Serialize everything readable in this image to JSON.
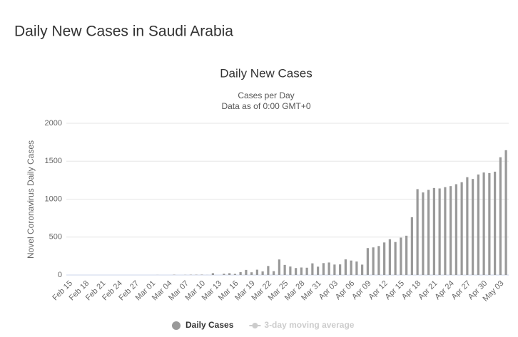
{
  "page_title": "Daily New Cases in Saudi Arabia",
  "chart_data": {
    "type": "bar",
    "title": "Daily New Cases",
    "subtitle": [
      "Cases per Day",
      "Data as of 0:00 GMT+0"
    ],
    "y_label": "Novel Coronavirus Daily Cases",
    "categories": [
      "Feb 15",
      null,
      null,
      "Feb 18",
      null,
      null,
      "Feb 21",
      null,
      null,
      "Feb 24",
      null,
      null,
      "Feb 27",
      null,
      null,
      "Mar 01",
      null,
      null,
      "Mar 04",
      null,
      null,
      "Mar 07",
      null,
      null,
      "Mar 10",
      null,
      null,
      "Mar 13",
      null,
      null,
      "Mar 16",
      null,
      null,
      "Mar 19",
      null,
      null,
      "Mar 22",
      null,
      null,
      "Mar 25",
      null,
      null,
      "Mar 28",
      null,
      null,
      "Mar 31",
      null,
      null,
      "Apr 03",
      null,
      null,
      "Apr 06",
      null,
      null,
      "Apr 09",
      null,
      null,
      "Apr 12",
      null,
      null,
      "Apr 15",
      null,
      null,
      "Apr 18",
      null,
      null,
      "Apr 21",
      null,
      null,
      "Apr 24",
      null,
      null,
      "Apr 27",
      null,
      null,
      "Apr 30",
      null,
      null,
      "May 03",
      null
    ],
    "series": [
      {
        "name": "Daily Cases",
        "color": "#999999",
        "values": [
          0,
          0,
          0,
          0,
          0,
          0,
          0,
          0,
          0,
          0,
          0,
          0,
          0,
          0,
          0,
          0,
          1,
          0,
          0,
          4,
          0,
          2,
          4,
          4,
          5,
          1,
          24,
          0,
          17,
          24,
          15,
          38,
          67,
          36,
          70,
          48,
          119,
          51,
          205,
          133,
          112,
          92,
          99,
          96,
          154,
          110,
          157,
          165,
          138,
          140,
          206,
          191,
          178,
          137,
          355,
          364,
          382,
          429,
          472,
          435,
          493,
          518,
          762,
          1132,
          1088,
          1122,
          1147,
          1141,
          1158,
          1172,
          1197,
          1223,
          1289,
          1266,
          1325,
          1351,
          1344,
          1362,
          1552,
          1645
        ]
      },
      {
        "name": "3-day moving average",
        "color": "#cccccc",
        "visible": false
      }
    ],
    "ylim": [
      0,
      2000
    ],
    "yticks": [
      0,
      500,
      1000,
      1500,
      2000
    ],
    "grid": true,
    "legend": "bottom"
  }
}
